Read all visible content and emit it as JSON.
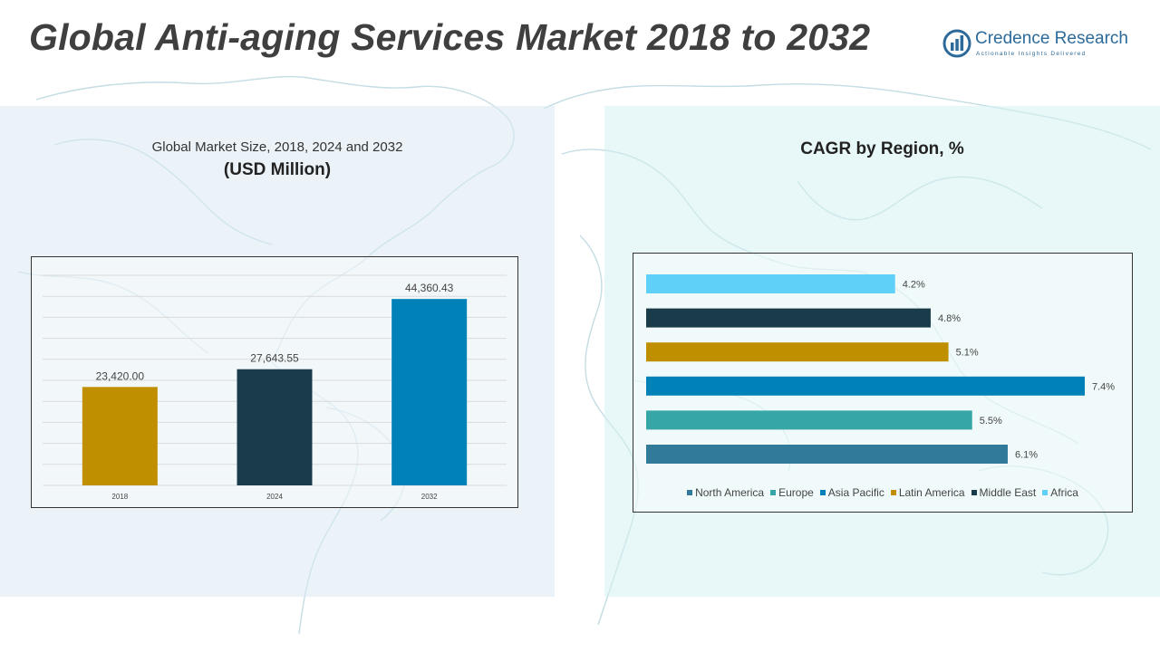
{
  "page": {
    "title": "Global Anti-aging Services Market 2018 to 2032"
  },
  "logo": {
    "name": "Credence Research",
    "tagline": "Actionable Insights Delivered"
  },
  "left_panel": {
    "subtitle": "Global Market Size, 2018, 2024 and 2032",
    "unit": "(USD Million)"
  },
  "right_panel": {
    "title": "CAGR by Region, %"
  },
  "colors": {
    "left_panel_bg": "#dbeaf3",
    "right_panel_bg": "#d6f0f0",
    "map_lines": "#c4dde4"
  },
  "chart_data": [
    {
      "type": "bar",
      "title": "Global Market Size, 2018, 2024 and 2032",
      "ylabel": "(USD Million)",
      "categories": [
        "2018",
        "2024",
        "2032"
      ],
      "values": [
        23420.0,
        27643.55,
        44360.43
      ],
      "value_labels": [
        "23,420.00",
        "27,643.55",
        "44,360.43"
      ],
      "colors": [
        "#bf8f00",
        "#1a3b4a",
        "#0082b8"
      ],
      "ylim": [
        0,
        50000
      ],
      "grid": true,
      "gridlines": 10
    },
    {
      "type": "bar",
      "orientation": "horizontal",
      "title": "CAGR by Region, %",
      "categories": [
        "Africa",
        "Middle East",
        "Latin America",
        "Asia Pacific",
        "Europe",
        "North America"
      ],
      "values": [
        4.2,
        4.8,
        5.1,
        7.4,
        5.5,
        6.1
      ],
      "value_labels": [
        "4.2%",
        "4.8%",
        "5.1%",
        "7.4%",
        "5.5%",
        "6.1%"
      ],
      "colors": [
        "#5fd0f8",
        "#1a3b4a",
        "#bf8f00",
        "#0082b8",
        "#37a6a6",
        "#317a9a"
      ],
      "xlim": [
        0,
        7.4
      ],
      "legend": {
        "position": "bottom",
        "entries": [
          "North America",
          "Europe",
          "Asia Pacific",
          "Latin America",
          "Middle East",
          "Africa"
        ],
        "colors": [
          "#317a9a",
          "#37a6a6",
          "#0082b8",
          "#bf8f00",
          "#1a3b4a",
          "#5fd0f8"
        ]
      }
    }
  ]
}
